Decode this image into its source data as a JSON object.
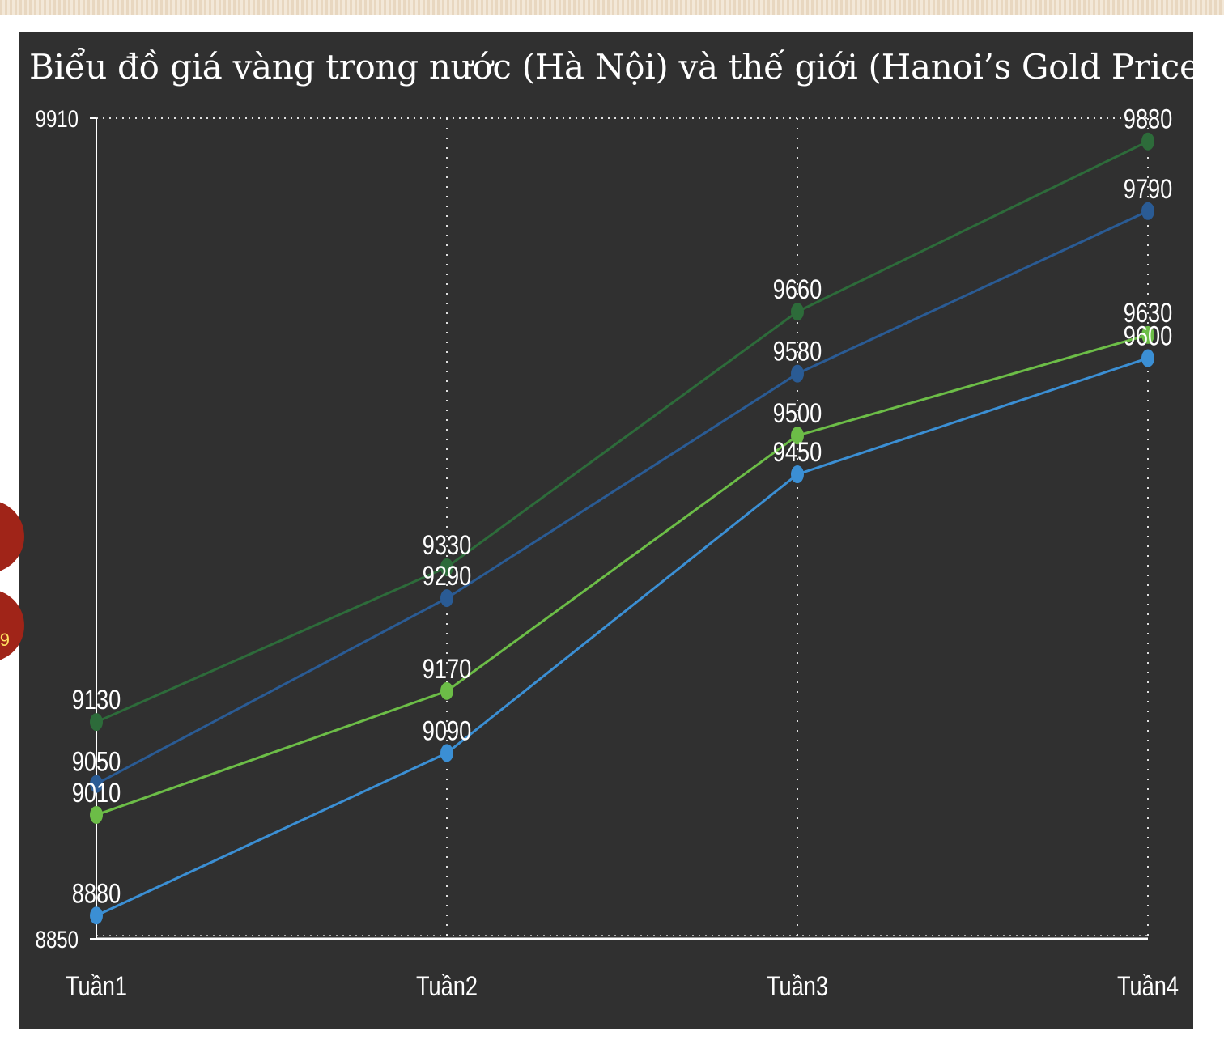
{
  "title": "Biểu đồ giá vàng trong nước (Hà Nội) và thế giới (Hanoi’s Gold Price)",
  "side_badge_text": "9",
  "colors": {
    "background": "#303030",
    "axis": "#ffffff",
    "grid": "#ffffff"
  },
  "chart_data": {
    "type": "line",
    "title": "Biểu đồ giá vàng trong nước (Hà Nội) và thế giới (Hanoi’s Gold Price)",
    "categories": [
      "Tuần1",
      "Tuần2",
      "Tuần3",
      "Tuần4"
    ],
    "ylim": [
      8850,
      9910
    ],
    "yticks": [
      8850,
      9910
    ],
    "grid": true,
    "series": [
      {
        "values": [
          9130,
          9330,
          9660,
          9880
        ],
        "color": "#2d6b3a"
      },
      {
        "values": [
          9050,
          9290,
          9580,
          9790
        ],
        "color": "#2a5b94"
      },
      {
        "values": [
          9010,
          9170,
          9500,
          9630
        ],
        "color": "#6cbd47"
      },
      {
        "values": [
          8880,
          9090,
          9450,
          9600
        ],
        "color": "#3b8fd4"
      }
    ]
  }
}
